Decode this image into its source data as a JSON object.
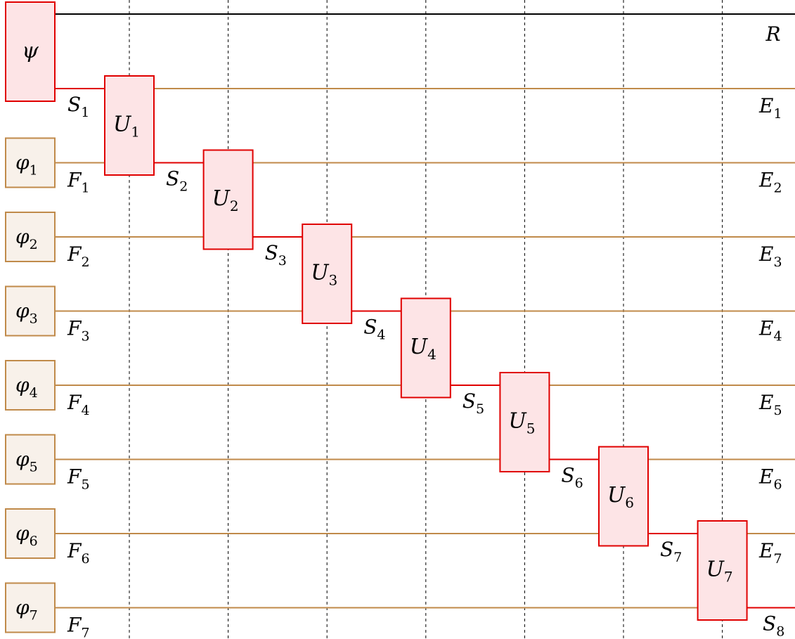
{
  "diagram": {
    "psi_label": "ψ",
    "reference_label": "R",
    "phi_boxes": [
      {
        "base": "φ",
        "sub": "1"
      },
      {
        "base": "φ",
        "sub": "2"
      },
      {
        "base": "φ",
        "sub": "3"
      },
      {
        "base": "φ",
        "sub": "4"
      },
      {
        "base": "φ",
        "sub": "5"
      },
      {
        "base": "φ",
        "sub": "6"
      },
      {
        "base": "φ",
        "sub": "7"
      }
    ],
    "gates": [
      {
        "base": "U",
        "sub": "1"
      },
      {
        "base": "U",
        "sub": "2"
      },
      {
        "base": "U",
        "sub": "3"
      },
      {
        "base": "U",
        "sub": "4"
      },
      {
        "base": "U",
        "sub": "5"
      },
      {
        "base": "U",
        "sub": "6"
      },
      {
        "base": "U",
        "sub": "7"
      }
    ],
    "s_labels": [
      {
        "base": "S",
        "sub": "1"
      },
      {
        "base": "S",
        "sub": "2"
      },
      {
        "base": "S",
        "sub": "3"
      },
      {
        "base": "S",
        "sub": "4"
      },
      {
        "base": "S",
        "sub": "5"
      },
      {
        "base": "S",
        "sub": "6"
      },
      {
        "base": "S",
        "sub": "7"
      },
      {
        "base": "S",
        "sub": "8"
      }
    ],
    "f_labels": [
      {
        "base": "F",
        "sub": "1"
      },
      {
        "base": "F",
        "sub": "2"
      },
      {
        "base": "F",
        "sub": "3"
      },
      {
        "base": "F",
        "sub": "4"
      },
      {
        "base": "F",
        "sub": "5"
      },
      {
        "base": "F",
        "sub": "6"
      },
      {
        "base": "F",
        "sub": "7"
      }
    ],
    "e_labels": [
      {
        "base": "E",
        "sub": "1"
      },
      {
        "base": "E",
        "sub": "2"
      },
      {
        "base": "E",
        "sub": "3"
      },
      {
        "base": "E",
        "sub": "4"
      },
      {
        "base": "E",
        "sub": "5"
      },
      {
        "base": "E",
        "sub": "6"
      },
      {
        "base": "E",
        "sub": "7"
      }
    ],
    "colors": {
      "wire_brown": "#c08a4a",
      "wire_red": "#e00000",
      "wire_black": "#000000",
      "gate_fill": "#fde4e6",
      "gate_stroke": "#e00000",
      "phi_fill": "#f8f1ea",
      "phi_stroke": "#c08a4a",
      "dashed": "#000000"
    }
  }
}
